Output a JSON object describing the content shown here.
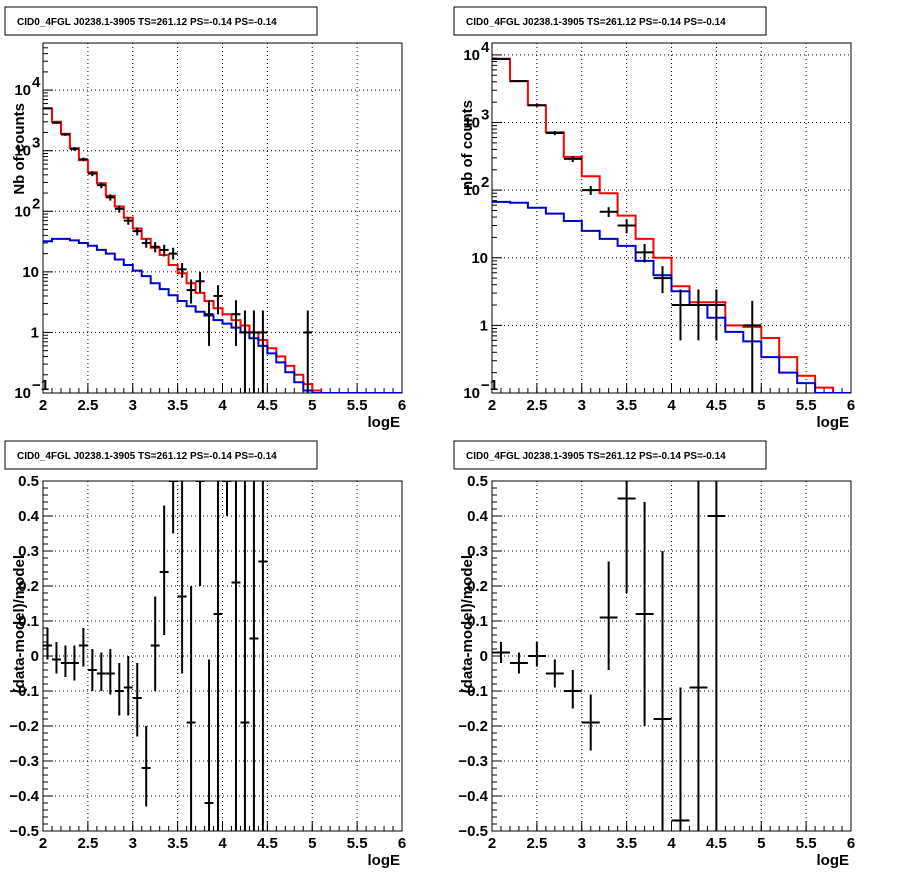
{
  "chart_data": [
    {
      "type": "line",
      "title": "CID0_4FGL J0238.1-3905 TS=261.12 PS=-0.14 PS=-0.14",
      "xlabel": "logE",
      "ylabel": "Nb of counts",
      "xlim": [
        2,
        6
      ],
      "ylim": [
        0.1,
        60000
      ],
      "yscale": "log",
      "grid": true,
      "x_ticks": [
        "2",
        "2.5",
        "3",
        "3.5",
        "4",
        "4.5",
        "5",
        "5.5",
        "6"
      ],
      "y_ticks": [
        {
          "value": 0.1,
          "label": "10",
          "sup": "−1"
        },
        {
          "value": 1,
          "label": "1",
          "sup": ""
        },
        {
          "value": 10,
          "label": "10",
          "sup": ""
        },
        {
          "value": 100,
          "label": "10",
          "sup": "2"
        },
        {
          "value": 1000,
          "label": "10",
          "sup": "3"
        },
        {
          "value": 10000,
          "label": "10",
          "sup": "4"
        }
      ],
      "colors": {
        "total_model": "#ff0000",
        "component": "#0000cc",
        "data": "#000000"
      },
      "bin_edges": [
        2.0,
        2.1,
        2.2,
        2.3,
        2.4,
        2.5,
        2.6,
        2.7,
        2.8,
        2.9,
        3.0,
        3.1,
        3.2,
        3.3,
        3.4,
        3.5,
        3.6,
        3.7,
        3.8,
        3.9,
        4.0,
        4.1,
        4.2,
        4.3,
        4.4,
        4.5,
        4.6,
        4.7,
        4.8,
        4.9,
        5.0,
        5.1,
        5.2,
        5.3,
        5.4,
        5.5,
        5.6,
        5.7,
        5.8,
        5.9,
        6.0
      ],
      "series": [
        {
          "role": "total_model",
          "values": [
            5000,
            3000,
            1900,
            1100,
            700,
            440,
            290,
            180,
            120,
            78,
            52,
            35,
            25,
            19,
            13,
            9.5,
            6.5,
            4.5,
            3.3,
            2.5,
            2.0,
            1.6,
            1.3,
            1.0,
            0.75,
            0.55,
            0.4,
            0.28,
            0.2,
            0.14,
            0.11,
            0.1,
            0.1,
            0.1,
            0.1,
            0.1,
            0.1,
            0.1,
            0.1,
            0.1
          ]
        },
        {
          "role": "component",
          "values": [
            32,
            35,
            35,
            33,
            30,
            27,
            23,
            20,
            16,
            13,
            10.5,
            8.5,
            6.5,
            5.2,
            4.1,
            3.3,
            2.7,
            2.2,
            1.9,
            1.6,
            1.4,
            1.2,
            1.0,
            0.8,
            0.6,
            0.45,
            0.32,
            0.22,
            0.15,
            0.11,
            0.1,
            0.1,
            0.1,
            0.1,
            0.1,
            0.1,
            0.1,
            0.1,
            0.1,
            0.1
          ]
        }
      ],
      "points": [
        {
          "x": 2.05,
          "y": 5000,
          "lo": 4860,
          "hi": 5140
        },
        {
          "x": 2.15,
          "y": 2900,
          "lo": 2790,
          "hi": 3010
        },
        {
          "x": 2.25,
          "y": 1850,
          "lo": 1760,
          "hi": 1940
        },
        {
          "x": 2.35,
          "y": 1070,
          "lo": 1000,
          "hi": 1140
        },
        {
          "x": 2.45,
          "y": 720,
          "lo": 670,
          "hi": 770
        },
        {
          "x": 2.55,
          "y": 420,
          "lo": 380,
          "hi": 460
        },
        {
          "x": 2.65,
          "y": 270,
          "lo": 240,
          "hi": 300
        },
        {
          "x": 2.75,
          "y": 170,
          "lo": 150,
          "hi": 190
        },
        {
          "x": 2.85,
          "y": 110,
          "lo": 95,
          "hi": 125
        },
        {
          "x": 2.95,
          "y": 70,
          "lo": 60,
          "hi": 80
        },
        {
          "x": 3.05,
          "y": 47,
          "lo": 40,
          "hi": 54
        },
        {
          "x": 3.15,
          "y": 30,
          "lo": 25,
          "hi": 35
        },
        {
          "x": 3.25,
          "y": 26,
          "lo": 21,
          "hi": 31
        },
        {
          "x": 3.35,
          "y": 23,
          "lo": 18,
          "hi": 28
        },
        {
          "x": 3.45,
          "y": 20,
          "lo": 16,
          "hi": 25
        },
        {
          "x": 3.55,
          "y": 11,
          "lo": 8,
          "hi": 14
        },
        {
          "x": 3.65,
          "y": 5,
          "lo": 3,
          "hi": 7.5
        },
        {
          "x": 3.75,
          "y": 7,
          "lo": 4.5,
          "hi": 10
        },
        {
          "x": 3.85,
          "y": 2,
          "lo": 0.6,
          "hi": 3.4
        },
        {
          "x": 3.95,
          "y": 4,
          "lo": 2,
          "hi": 6
        },
        {
          "x": 4.15,
          "y": 2,
          "lo": 0.6,
          "hi": 3.4
        },
        {
          "x": 4.25,
          "y": 1,
          "lo": 0.1,
          "hi": 2.3
        },
        {
          "x": 4.35,
          "y": 1,
          "lo": 0.1,
          "hi": 2.3
        },
        {
          "x": 4.45,
          "y": 1,
          "lo": 0.1,
          "hi": 2.3
        },
        {
          "x": 4.95,
          "y": 1,
          "lo": 0.1,
          "hi": 2.3
        }
      ]
    },
    {
      "type": "line",
      "title": "CID0_4FGL J0238.1-3905 TS=261.12 PS=-0.14 PS=-0.14",
      "xlabel": "logE",
      "ylabel": "nb of counts",
      "xlim": [
        2,
        6
      ],
      "ylim": [
        0.1,
        15000
      ],
      "yscale": "log",
      "grid": true,
      "x_ticks": [
        "2",
        "2.5",
        "3",
        "3.5",
        "4",
        "4.5",
        "5",
        "5.5",
        "6"
      ],
      "y_ticks": [
        {
          "value": 0.1,
          "label": "10",
          "sup": "−1"
        },
        {
          "value": 1,
          "label": "1",
          "sup": ""
        },
        {
          "value": 10,
          "label": "10",
          "sup": ""
        },
        {
          "value": 100,
          "label": "10",
          "sup": "2"
        },
        {
          "value": 1000,
          "label": "10",
          "sup": "3"
        },
        {
          "value": 10000,
          "label": "10",
          "sup": "4"
        }
      ],
      "colors": {
        "total_model": "#ff0000",
        "component": "#0000cc",
        "data": "#000000"
      },
      "bin_edges": [
        2.0,
        2.2,
        2.4,
        2.6,
        2.8,
        3.0,
        3.2,
        3.4,
        3.6,
        3.8,
        4.0,
        4.2,
        4.4,
        4.6,
        4.8,
        5.0,
        5.2,
        5.4,
        5.6,
        5.8,
        6.0
      ],
      "series": [
        {
          "role": "total_model",
          "values": [
            8800,
            4100,
            1800,
            720,
            310,
            160,
            90,
            42,
            19,
            10,
            3.8,
            2.2,
            2.2,
            1.0,
            0.95,
            0.65,
            0.34,
            0.18,
            0.12,
            0.1
          ]
        },
        {
          "role": "component",
          "values": [
            67,
            65,
            55,
            45,
            35,
            25,
            19,
            15,
            9,
            5.5,
            3.2,
            2.0,
            1.3,
            0.8,
            0.58,
            0.34,
            0.2,
            0.14,
            0.1,
            0.1
          ]
        }
      ],
      "points": [
        {
          "x": 2.1,
          "y": 8700,
          "lo": 8500,
          "hi": 8900
        },
        {
          "x": 2.3,
          "y": 4100,
          "lo": 3960,
          "hi": 4240
        },
        {
          "x": 2.5,
          "y": 1800,
          "lo": 1710,
          "hi": 1890
        },
        {
          "x": 2.7,
          "y": 700,
          "lo": 650,
          "hi": 750
        },
        {
          "x": 2.9,
          "y": 290,
          "lo": 260,
          "hi": 320
        },
        {
          "x": 3.1,
          "y": 100,
          "lo": 85,
          "hi": 115
        },
        {
          "x": 3.3,
          "y": 48,
          "lo": 40,
          "hi": 56
        },
        {
          "x": 3.5,
          "y": 30,
          "lo": 23,
          "hi": 37
        },
        {
          "x": 3.7,
          "y": 12,
          "lo": 8.5,
          "hi": 16
        },
        {
          "x": 3.9,
          "y": 5,
          "lo": 3,
          "hi": 7.5
        },
        {
          "x": 4.1,
          "y": 2,
          "lo": 0.6,
          "hi": 3.4
        },
        {
          "x": 4.3,
          "y": 2,
          "lo": 0.6,
          "hi": 3.4
        },
        {
          "x": 4.5,
          "y": 2,
          "lo": 0.6,
          "hi": 3.4
        },
        {
          "x": 4.9,
          "y": 1,
          "lo": 0.1,
          "hi": 2.3
        }
      ]
    },
    {
      "type": "scatter",
      "title": "CID0_4FGL J0238.1-3905 TS=261.12 PS=-0.14 PS=-0.14",
      "xlabel": "logE",
      "ylabel": "(data-model)/model",
      "xlim": [
        2,
        6
      ],
      "ylim": [
        -0.5,
        0.5
      ],
      "grid": true,
      "x_ticks": [
        "2",
        "2.5",
        "3",
        "3.5",
        "4",
        "4.5",
        "5",
        "5.5",
        "6"
      ],
      "y_ticks": [
        "−0.5",
        "−0.4",
        "−0.3",
        "−0.2",
        "−0.1",
        "0",
        "0.1",
        "0.2",
        "0.3",
        "0.4",
        "0.5"
      ],
      "x_half_width": 0.05,
      "points": [
        {
          "x": 2.05,
          "y": 0.03,
          "lo": -0.01,
          "hi": 0.08
        },
        {
          "x": 2.15,
          "y": -0.01,
          "lo": -0.05,
          "hi": 0.04
        },
        {
          "x": 2.25,
          "y": -0.02,
          "lo": -0.06,
          "hi": 0.03
        },
        {
          "x": 2.35,
          "y": -0.02,
          "lo": -0.07,
          "hi": 0.03
        },
        {
          "x": 2.45,
          "y": 0.03,
          "lo": -0.03,
          "hi": 0.08
        },
        {
          "x": 2.55,
          "y": -0.04,
          "lo": -0.1,
          "hi": 0.02
        },
        {
          "x": 2.65,
          "y": -0.05,
          "lo": -0.1,
          "hi": 0.01
        },
        {
          "x": 2.75,
          "y": -0.05,
          "lo": -0.11,
          "hi": 0.02
        },
        {
          "x": 2.85,
          "y": -0.1,
          "lo": -0.17,
          "hi": -0.02
        },
        {
          "x": 2.95,
          "y": -0.09,
          "lo": -0.17,
          "hi": 0.0
        },
        {
          "x": 3.05,
          "y": -0.12,
          "lo": -0.23,
          "hi": -0.02
        },
        {
          "x": 3.15,
          "y": -0.32,
          "lo": -0.43,
          "hi": -0.2
        },
        {
          "x": 3.25,
          "y": 0.03,
          "lo": -0.1,
          "hi": 0.17
        },
        {
          "x": 3.35,
          "y": 0.24,
          "lo": 0.06,
          "hi": 0.43
        },
        {
          "x": 3.45,
          "y": 0.5,
          "lo": 0.35,
          "hi": 0.5
        },
        {
          "x": 3.55,
          "y": 0.17,
          "lo": -0.05,
          "hi": 0.5
        },
        {
          "x": 3.65,
          "y": -0.19,
          "lo": -0.5,
          "hi": 0.2
        },
        {
          "x": 3.75,
          "y": 0.5,
          "lo": 0.2,
          "hi": 0.5
        },
        {
          "x": 3.85,
          "y": -0.42,
          "lo": -0.5,
          "hi": -0.01
        },
        {
          "x": 3.95,
          "y": 0.12,
          "lo": -0.5,
          "hi": 0.5
        },
        {
          "x": 4.05,
          "y": 0.5,
          "lo": 0.4,
          "hi": 0.5
        },
        {
          "x": 4.15,
          "y": 0.21,
          "lo": -0.5,
          "hi": 0.5
        },
        {
          "x": 4.25,
          "y": -0.19,
          "lo": -0.5,
          "hi": 0.5
        },
        {
          "x": 4.35,
          "y": 0.05,
          "lo": -0.5,
          "hi": 0.5
        },
        {
          "x": 4.45,
          "y": 0.27,
          "lo": -0.5,
          "hi": 0.5
        }
      ]
    },
    {
      "type": "scatter",
      "title": "CID0_4FGL J0238.1-3905 TS=261.12 PS=-0.14 PS=-0.14",
      "xlabel": "logE",
      "ylabel": "(data-model)/model",
      "xlim": [
        2,
        6
      ],
      "ylim": [
        -0.5,
        0.5
      ],
      "grid": true,
      "x_ticks": [
        "2",
        "2.5",
        "3",
        "3.5",
        "4",
        "4.5",
        "5",
        "5.5",
        "6"
      ],
      "y_ticks": [
        "−0.5",
        "−0.4",
        "−0.3",
        "−0.2",
        "−0.1",
        "0",
        "0.1",
        "0.2",
        "0.3",
        "0.4",
        "0.5"
      ],
      "x_half_width": 0.1,
      "points": [
        {
          "x": 2.1,
          "y": 0.01,
          "lo": -0.02,
          "hi": 0.04
        },
        {
          "x": 2.3,
          "y": -0.02,
          "lo": -0.05,
          "hi": 0.01
        },
        {
          "x": 2.5,
          "y": 0.0,
          "lo": -0.03,
          "hi": 0.04
        },
        {
          "x": 2.7,
          "y": -0.05,
          "lo": -0.09,
          "hi": -0.01
        },
        {
          "x": 2.9,
          "y": -0.1,
          "lo": -0.15,
          "hi": -0.04
        },
        {
          "x": 3.1,
          "y": -0.19,
          "lo": -0.27,
          "hi": -0.11
        },
        {
          "x": 3.3,
          "y": 0.11,
          "lo": -0.04,
          "hi": 0.27
        },
        {
          "x": 3.5,
          "y": 0.45,
          "lo": 0.18,
          "hi": 0.5
        },
        {
          "x": 3.7,
          "y": 0.12,
          "lo": -0.2,
          "hi": 0.44
        },
        {
          "x": 3.9,
          "y": -0.18,
          "lo": -0.5,
          "hi": 0.3
        },
        {
          "x": 4.1,
          "y": -0.47,
          "lo": -0.5,
          "hi": -0.09
        },
        {
          "x": 4.3,
          "y": -0.09,
          "lo": -0.5,
          "hi": 0.5
        },
        {
          "x": 4.5,
          "y": 0.4,
          "lo": -0.5,
          "hi": 0.5
        }
      ]
    }
  ]
}
